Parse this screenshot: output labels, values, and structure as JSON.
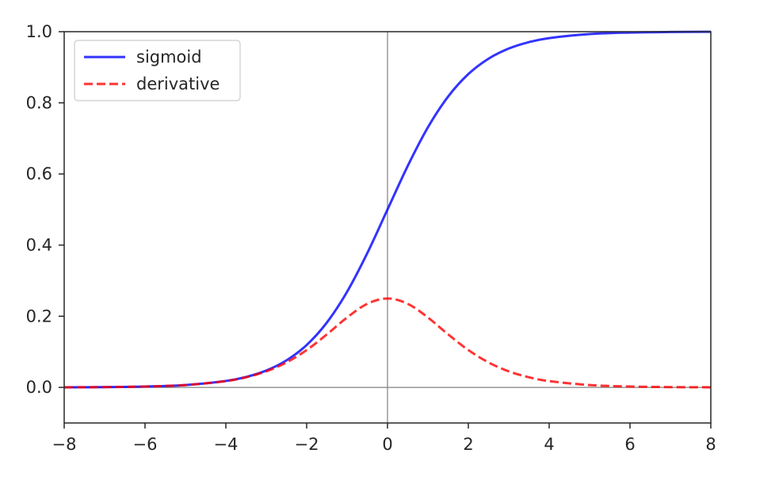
{
  "chart_data": {
    "type": "line",
    "title": "",
    "xlabel": "",
    "ylabel": "",
    "xlim": [
      -8,
      8
    ],
    "ylim": [
      -0.1,
      1.0
    ],
    "x_ticks": [
      -8,
      -6,
      -4,
      -2,
      0,
      2,
      4,
      6,
      8
    ],
    "x_tick_labels": [
      "−8",
      "−6",
      "−4",
      "−2",
      "0",
      "2",
      "4",
      "6",
      "8"
    ],
    "y_ticks": [
      0.0,
      0.2,
      0.4,
      0.6,
      0.8,
      1.0
    ],
    "y_tick_labels": [
      "0.0",
      "0.2",
      "0.4",
      "0.6",
      "0.8",
      "1.0"
    ],
    "grid": false,
    "reference_lines": {
      "x": 0,
      "y": 0,
      "color": "#808080"
    },
    "legend": {
      "position": "top-left"
    },
    "x": [
      -8,
      -7,
      -6,
      -5,
      -4,
      -3.5,
      -3,
      -2.5,
      -2,
      -1.5,
      -1,
      -0.5,
      0,
      0.5,
      1,
      1.5,
      2,
      2.5,
      3,
      3.5,
      4,
      5,
      6,
      7,
      8
    ],
    "series": [
      {
        "name": "sigmoid",
        "color": "#0000ff",
        "style": "solid",
        "values": [
          0.0003,
          0.0009,
          0.0025,
          0.0067,
          0.018,
          0.0293,
          0.0474,
          0.0759,
          0.1192,
          0.1824,
          0.2689,
          0.3775,
          0.5,
          0.6225,
          0.7311,
          0.8176,
          0.8808,
          0.9241,
          0.9526,
          0.9707,
          0.982,
          0.9933,
          0.9975,
          0.9991,
          0.9997
        ]
      },
      {
        "name": "derivative",
        "color": "#ff0000",
        "style": "dashed",
        "values": [
          0.0003,
          0.0009,
          0.0025,
          0.0066,
          0.0177,
          0.0285,
          0.0452,
          0.0701,
          0.105,
          0.1491,
          0.1966,
          0.235,
          0.25,
          0.235,
          0.1966,
          0.1491,
          0.105,
          0.0701,
          0.0452,
          0.0285,
          0.0177,
          0.0066,
          0.0025,
          0.0009,
          0.0003
        ]
      }
    ]
  }
}
